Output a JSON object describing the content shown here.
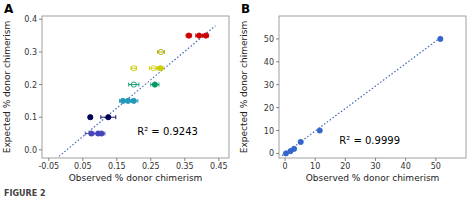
{
  "title": "FIGURE 2",
  "chart_data": [
    {
      "type": "scatter",
      "title": "A",
      "x_label": "Observed % donor chimerism",
      "y_label": "Expected % donor chimerism",
      "xlim": [
        -0.07,
        0.48
      ],
      "ylim": [
        -0.025,
        0.41
      ],
      "xticks": [
        -0.05,
        0.05,
        0.15,
        0.25,
        0.35,
        0.45
      ],
      "yticks": [
        {
          "value": 0,
          "label": "0.0"
        },
        0.1,
        0.2,
        0.3,
        0.4
      ],
      "annotations": [
        {
          "text": "R² = 0.9243",
          "x": 0.21,
          "y": 0.045
        }
      ],
      "series": [
        {
          "type": "line",
          "line_style": "dotted",
          "color": "#4466bb",
          "x": [
            -0.02,
            0.44
          ],
          "values": [
            -0.02,
            0.38
          ]
        },
        {
          "color": "#4444bb",
          "marker": "circle",
          "x": [
            0.075,
            0.095,
            0.105
          ],
          "values": [
            0.05,
            0.05,
            0.05
          ],
          "xerr": [
            0.018,
            0.012,
            0.01
          ]
        },
        {
          "color": "#000055",
          "marker": "circle",
          "x": [
            0.072,
            0.125
          ],
          "values": [
            0.1,
            0.1
          ],
          "xerr": [
            0.005,
            0.022
          ]
        },
        {
          "color": "#2299bb",
          "marker": "circle",
          "x": [
            0.168,
            0.183,
            0.2
          ],
          "values": [
            0.15,
            0.15,
            0.15
          ],
          "xerr": [
            0.01,
            0.01,
            0.012
          ]
        },
        {
          "color": "#009966",
          "marker": "open-circle",
          "x": [
            0.2
          ],
          "values": [
            0.2
          ],
          "xerr": [
            0.015
          ]
        },
        {
          "color": "#009966",
          "marker": "circle",
          "x": [
            0.262
          ],
          "values": [
            0.2
          ],
          "xerr": [
            0.012
          ]
        },
        {
          "color": "#cccc00",
          "marker": "open-circle",
          "x": [
            0.2,
            0.258
          ],
          "values": [
            0.25,
            0.25
          ],
          "xerr": [
            0.008,
            0.012
          ]
        },
        {
          "color": "#cccc00",
          "marker": "circle",
          "x": [
            0.278
          ],
          "values": [
            0.25
          ],
          "xerr": [
            0.01
          ]
        },
        {
          "color": "#aaaa00",
          "marker": "open-circle",
          "x": [
            0.28
          ],
          "values": [
            0.3
          ],
          "xerr": [
            0.01
          ]
        },
        {
          "color": "#cc0000",
          "marker": "circle",
          "x": [
            0.362,
            0.392,
            0.412
          ],
          "values": [
            0.35,
            0.35,
            0.35
          ],
          "xerr": [
            0.008,
            0.01,
            0.008
          ]
        }
      ]
    },
    {
      "type": "scatter",
      "title": "B",
      "x_label": "Observed % donor chimerism",
      "y_label": "Expected % donor chimerism",
      "xlim": [
        -2,
        60
      ],
      "ylim": [
        -2,
        60
      ],
      "xticks": [
        0,
        10,
        20,
        30,
        40,
        50
      ],
      "yticks": [
        0,
        10,
        20,
        30,
        40,
        50
      ],
      "annotations": [
        {
          "text": "R² = 0.9999",
          "x": 18,
          "y": 4
        }
      ],
      "series": [
        {
          "type": "line",
          "line_style": "dotted",
          "color": "#4466bb",
          "x": [
            -1,
            52
          ],
          "values": [
            -1,
            51
          ]
        },
        {
          "color": "#3366cc",
          "marker": "circle",
          "x": [
            0.3,
            1.8,
            3.0,
            5.2,
            11.5,
            51.5
          ],
          "values": [
            0,
            1,
            2,
            5,
            10,
            50
          ]
        }
      ]
    }
  ]
}
